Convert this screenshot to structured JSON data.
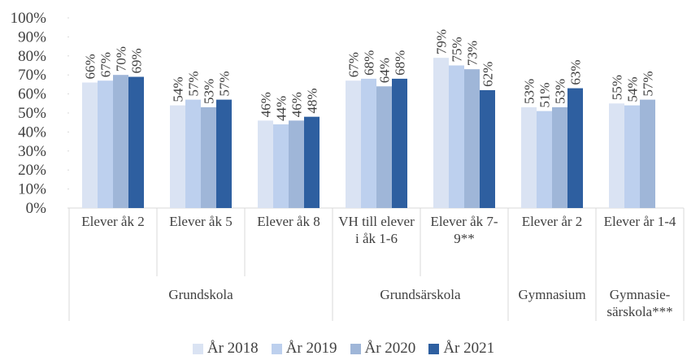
{
  "chart_data": {
    "type": "bar",
    "groups": [
      {
        "name": "Grundskola",
        "categories": [
          "Elever åk 2",
          "Elever åk 5",
          "Elever åk 8"
        ]
      },
      {
        "name": "Grundsärskola",
        "categories": [
          "VH till elever i åk 1-6",
          "Elever åk 7-9**"
        ]
      },
      {
        "name": "Gymnasium",
        "categories": [
          "Elever år 2"
        ]
      },
      {
        "name": "Gymnasie-särskola***",
        "categories": [
          "Elever år 1-4"
        ]
      }
    ],
    "series": [
      {
        "name": "År 2018",
        "color": "#dae3f3",
        "values": [
          66,
          54,
          46,
          67,
          79,
          53,
          55
        ],
        "value_labels": [
          "66%",
          "54%",
          "46%",
          "67%",
          "79%",
          "53%",
          "55%"
        ]
      },
      {
        "name": "År 2019",
        "color": "#bdd0ee",
        "values": [
          67,
          57,
          44,
          68,
          75,
          51,
          54
        ],
        "value_labels": [
          "67%",
          "57%",
          "44%",
          "68%",
          "75%",
          "51%",
          "54%"
        ]
      },
      {
        "name": "År 2020",
        "color": "#9fb6d8",
        "values": [
          70,
          53,
          46,
          64,
          73,
          53,
          57
        ],
        "value_labels": [
          "70%",
          "53%",
          "46%",
          "64%",
          "73%",
          "53%",
          "57%"
        ]
      },
      {
        "name": "År 2021",
        "color": "#2e5fa0",
        "values": [
          69,
          57,
          48,
          68,
          62,
          63,
          null
        ],
        "value_labels": [
          "69%",
          "57%",
          "48%",
          "68%",
          "62%",
          "63%",
          null
        ]
      }
    ],
    "ylim": [
      0,
      100
    ],
    "yticks": [
      {
        "value": 0,
        "label": "0%"
      },
      {
        "value": 10,
        "label": "10%"
      },
      {
        "value": 20,
        "label": "20%"
      },
      {
        "value": 30,
        "label": "30%"
      },
      {
        "value": 40,
        "label": "40%"
      },
      {
        "value": 50,
        "label": "50%"
      },
      {
        "value": 60,
        "label": "60%"
      },
      {
        "value": 70,
        "label": "70%"
      },
      {
        "value": 80,
        "label": "80%"
      },
      {
        "value": 90,
        "label": "90%"
      },
      {
        "value": 100,
        "label": "100%"
      }
    ],
    "legend": "bottom"
  }
}
